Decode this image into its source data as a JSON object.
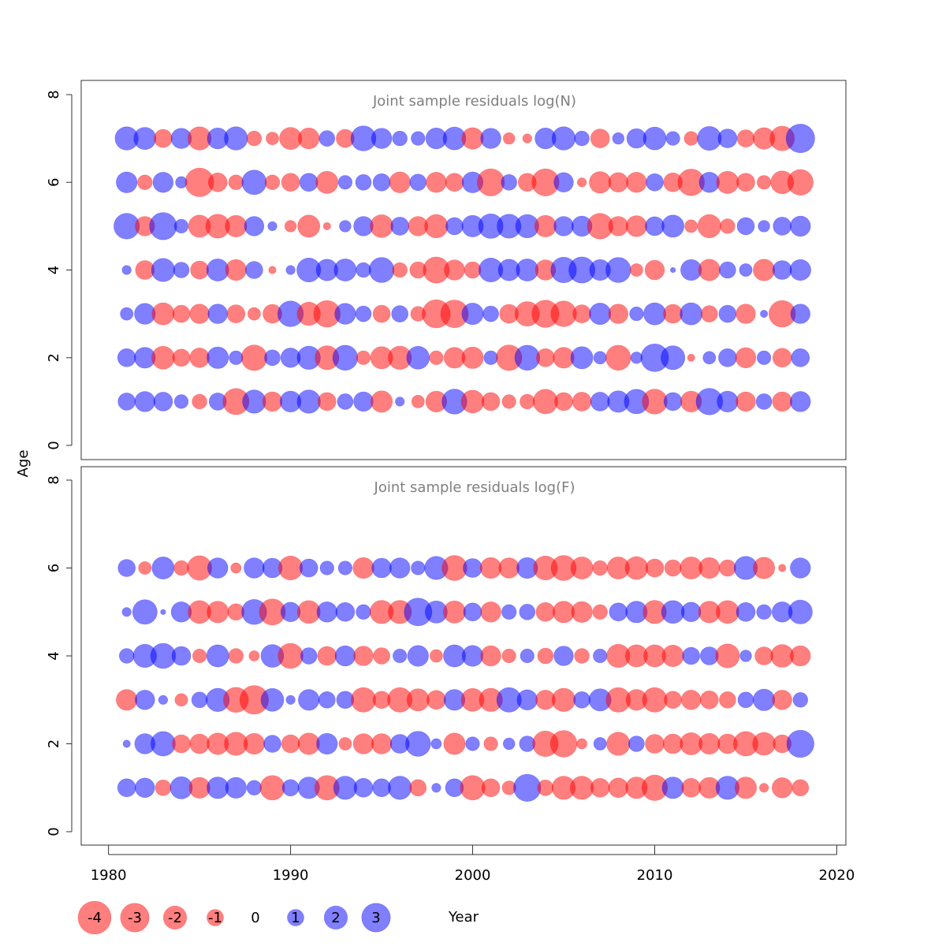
{
  "chart_data": [
    {
      "type": "scatter",
      "title": "Joint sample residuals log(N)",
      "xlabel": "Year",
      "ylabel": "Age",
      "x_ticks": [
        "1980",
        "1990",
        "2000",
        "2010",
        "2020"
      ],
      "y_ticks": [
        "0",
        "2",
        "4",
        "6",
        "8"
      ],
      "xlim": [
        1978.5,
        2020.5
      ],
      "ylim": [
        -0.3,
        8.3
      ],
      "years": [
        1981,
        1982,
        1983,
        1984,
        1985,
        1986,
        1987,
        1988,
        1989,
        1990,
        1991,
        1992,
        1993,
        1994,
        1995,
        1996,
        1997,
        1998,
        1999,
        2000,
        2001,
        2002,
        2003,
        2004,
        2005,
        2006,
        2007,
        2008,
        2009,
        2010,
        2011,
        2012,
        2013,
        2014,
        2015,
        2016,
        2017,
        2018
      ],
      "ages": [
        1,
        2,
        3,
        4,
        5,
        6,
        7
      ],
      "residuals": {
        "7": [
          2.0,
          1.8,
          -1.2,
          1.5,
          -2.0,
          1.6,
          2.0,
          -0.8,
          -0.6,
          -1.8,
          -1.6,
          0.9,
          -1.2,
          2.3,
          1.5,
          0.8,
          0.7,
          1.6,
          1.9,
          -1.7,
          1.5,
          -0.5,
          -0.3,
          1.6,
          2.0,
          0.8,
          -1.3,
          0.5,
          1.4,
          1.9,
          0.7,
          -0.7,
          2.1,
          1.3,
          -1.1,
          -1.7,
          -2.2,
          3.0
        ],
        "6": [
          1.6,
          -0.8,
          1.5,
          0.5,
          -3.0,
          -1.3,
          -0.8,
          2.2,
          -0.8,
          -1.2,
          1.2,
          -1.8,
          0.7,
          0.9,
          1.1,
          -1.6,
          1.0,
          -1.5,
          -1.2,
          1.6,
          -2.7,
          0.9,
          -1.2,
          -2.7,
          1.4,
          -0.3,
          -1.7,
          -1.4,
          -1.5,
          1.1,
          -1.3,
          -2.6,
          1.5,
          -1.8,
          -1.2,
          -0.7,
          -1.9,
          -2.4
        ],
        "5": [
          2.4,
          -1.4,
          2.7,
          0.7,
          -1.8,
          -2.1,
          -1.7,
          1.4,
          0.3,
          -0.5,
          -1.8,
          -0.2,
          0.5,
          1.4,
          -1.9,
          1.2,
          -1.4,
          -2.0,
          1.1,
          1.7,
          2.2,
          2.1,
          2.0,
          -1.7,
          1.4,
          1.5,
          -2.4,
          -1.4,
          -1.6,
          1.3,
          1.8,
          -0.6,
          -2.0,
          -0.8,
          1.1,
          0.5,
          1.2,
          1.5
        ],
        "4": [
          0.3,
          -1.3,
          2.0,
          0.9,
          -1.2,
          1.8,
          -1.6,
          1.1,
          -0.2,
          0.3,
          2.1,
          1.7,
          1.8,
          0.8,
          2.3,
          -0.8,
          -1.0,
          -2.5,
          -1.5,
          -1.0,
          2.1,
          1.7,
          1.8,
          -1.5,
          2.4,
          2.5,
          1.6,
          2.3,
          -0.6,
          -1.4,
          0.1,
          1.6,
          -1.7,
          1.0,
          0.6,
          -1.7,
          1.3,
          1.6
        ],
        "3": [
          0.6,
          1.6,
          -1.8,
          -1.1,
          -1.4,
          1.4,
          -1.2,
          -0.6,
          -1.3,
          2.4,
          -2.0,
          -2.6,
          1.6,
          0.9,
          -1.1,
          1.0,
          -0.8,
          -2.9,
          -2.8,
          1.7,
          0.9,
          -1.3,
          -2.2,
          -2.7,
          -2.4,
          -1.2,
          1.7,
          -1.4,
          0.7,
          1.8,
          -1.3,
          1.8,
          -1.0,
          1.1,
          -1.4,
          0.2,
          -2.6,
          1.4
        ],
        "2": [
          1.2,
          1.6,
          -1.9,
          -1.1,
          -1.4,
          1.7,
          0.7,
          -2.4,
          0.9,
          1.4,
          2.0,
          -2.1,
          2.3,
          -0.7,
          -1.8,
          -2.0,
          1.9,
          -0.7,
          -1.6,
          -1.7,
          0.7,
          -2.4,
          2.3,
          -1.2,
          -1.6,
          1.8,
          0.6,
          -2.3,
          0.5,
          2.8,
          2.1,
          -0.2,
          0.6,
          1.2,
          -1.5,
          0.7,
          -1.3,
          1.2
        ],
        "1": [
          1.1,
          1.5,
          1.3,
          0.7,
          -0.8,
          1.1,
          -2.5,
          2.0,
          -1.4,
          1.6,
          2.0,
          -1.2,
          0.9,
          1.4,
          -1.7,
          0.3,
          -0.6,
          -1.6,
          2.3,
          -1.9,
          -1.2,
          -0.7,
          -0.8,
          -2.2,
          -1.2,
          -1.3,
          1.3,
          1.7,
          2.2,
          -2.3,
          1.2,
          -1.6,
          2.6,
          1.6,
          -1.4,
          0.9,
          -1.4,
          1.5
        ]
      }
    },
    {
      "type": "scatter",
      "title": "Joint sample residuals log(F)",
      "xlabel": "Year",
      "ylabel": "Age",
      "x_ticks": [
        "1980",
        "1990",
        "2000",
        "2010",
        "2020"
      ],
      "y_ticks": [
        "0",
        "2",
        "4",
        "6",
        "8"
      ],
      "xlim": [
        1978.5,
        2020.5
      ],
      "ylim": [
        -0.3,
        8.3
      ],
      "years": [
        1981,
        1982,
        1983,
        1984,
        1985,
        1986,
        1987,
        1988,
        1989,
        1990,
        1991,
        1992,
        1993,
        1994,
        1995,
        1996,
        1997,
        1998,
        1999,
        2000,
        2001,
        2002,
        2003,
        2004,
        2005,
        2006,
        2007,
        2008,
        2009,
        2010,
        2011,
        2012,
        2013,
        2014,
        2015,
        2016,
        2017,
        2018
      ],
      "ages": [
        1,
        2,
        3,
        4,
        5,
        6
      ],
      "residuals": {
        "6": [
          1.1,
          -0.6,
          1.8,
          -0.8,
          -2.2,
          1.5,
          -0.4,
          1.5,
          1.4,
          -2.1,
          1.2,
          0.7,
          0.7,
          -1.6,
          1.4,
          1.5,
          0.7,
          2.0,
          -2.3,
          1.3,
          -1.6,
          -1.5,
          1.6,
          -2.1,
          -2.3,
          -1.8,
          -0.8,
          -1.8,
          -1.9,
          -1.2,
          -1.0,
          -1.8,
          -1.6,
          -1.0,
          2.0,
          -1.7,
          -0.2,
          1.5
        ],
        "5": [
          0.3,
          2.2,
          0.1,
          1.5,
          -1.9,
          -1.7,
          -1.0,
          2.3,
          -2.5,
          1.4,
          -1.9,
          1.5,
          1.3,
          0.8,
          -2.0,
          -2.0,
          2.8,
          1.8,
          -1.8,
          1.2,
          -1.5,
          0.8,
          0.9,
          -1.3,
          -1.7,
          -1.6,
          -0.8,
          1.2,
          1.7,
          -2.0,
          1.9,
          1.4,
          -1.7,
          -1.9,
          1.3,
          0.8,
          1.5,
          2.1
        ],
        "4": [
          0.8,
          2.0,
          2.3,
          1.3,
          -0.7,
          1.8,
          -0.8,
          -0.4,
          1.9,
          -2.3,
          1.0,
          -1.3,
          1.5,
          -1.4,
          -1.0,
          0.7,
          1.6,
          -0.6,
          1.8,
          1.6,
          -1.5,
          -0.7,
          0.7,
          -0.9,
          1.4,
          -0.8,
          0.7,
          -2.0,
          -1.8,
          -1.8,
          -1.7,
          1.1,
          1.2,
          -2.1,
          0.5,
          -1.2,
          -1.9,
          -1.5
        ],
        "3": [
          -1.6,
          1.4,
          0.3,
          -0.6,
          0.9,
          2.0,
          -2.3,
          -3.0,
          1.9,
          0.3,
          1.6,
          1.0,
          1.1,
          -2.2,
          -1.1,
          -2.2,
          -1.8,
          -1.3,
          1.6,
          -1.9,
          -2.0,
          2.2,
          1.5,
          -1.4,
          -2.0,
          1.0,
          1.8,
          -2.2,
          -1.6,
          -2.2,
          -1.1,
          -1.4,
          -1.2,
          -1.0,
          0.9,
          1.7,
          -1.4,
          0.8
        ],
        "2": [
          0.2,
          1.5,
          2.2,
          -1.2,
          -1.4,
          -1.7,
          -2.0,
          -1.6,
          1.1,
          -1.2,
          -1.7,
          1.6,
          -0.6,
          -1.5,
          -1.5,
          1.3,
          2.3,
          0.4,
          -1.7,
          0.7,
          -0.7,
          0.5,
          0.9,
          -2.4,
          -2.6,
          -0.4,
          0.6,
          -2.0,
          0.9,
          -1.3,
          -1.4,
          -1.8,
          -1.6,
          -1.4,
          -2.2,
          -1.9,
          -1.2,
          2.7
        ],
        "1": [
          1.2,
          1.4,
          -0.9,
          1.8,
          -1.6,
          1.7,
          1.6,
          0.8,
          -2.2,
          1.0,
          1.7,
          -2.2,
          2.0,
          1.3,
          1.2,
          2.0,
          -1.0,
          0.3,
          1.2,
          -2.2,
          -1.2,
          -0.7,
          2.7,
          -0.9,
          -2.0,
          -2.0,
          -1.3,
          -1.4,
          -1.7,
          -2.4,
          1.7,
          -1.3,
          -1.6,
          2.0,
          -1.7,
          -0.3,
          -1.5,
          -1.0
        ]
      }
    }
  ],
  "legend": {
    "labels": [
      "-4",
      "-3",
      "-2",
      "-1",
      "0",
      "1",
      "2",
      "3"
    ],
    "values": [
      -4,
      -3,
      -2,
      -1,
      0,
      1,
      2,
      3
    ]
  },
  "colors": {
    "positive": "#0000ff",
    "negative": "#ff0000",
    "opacity": 0.5
  }
}
